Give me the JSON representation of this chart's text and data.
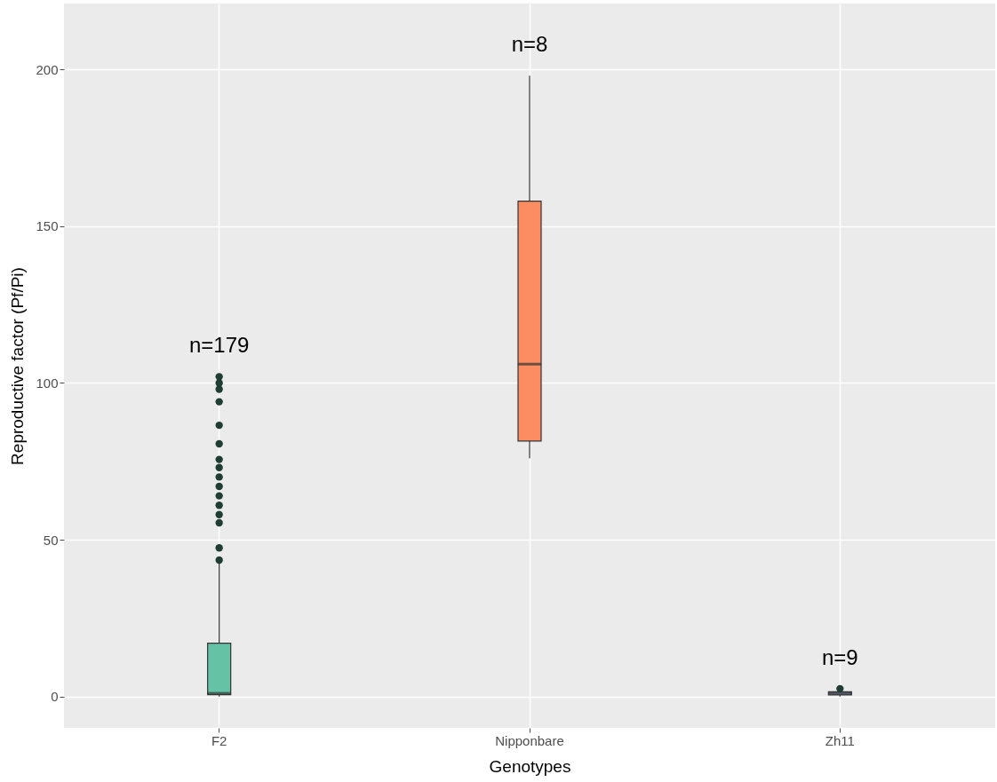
{
  "chart_data": {
    "type": "box",
    "xlabel": "Genotypes",
    "ylabel": "Reproductive factor (Pf/Pi)",
    "categories": [
      "F2",
      "Nipponbare",
      "Zh11"
    ],
    "colors": [
      "#66c2a5",
      "#fc8d62",
      "#8da0cb"
    ],
    "boxes": [
      {
        "low": 0,
        "q1": 0.6,
        "median": 1,
        "q3": 17,
        "high": 43,
        "outliers": [
          43.5,
          47.4,
          55.4,
          58,
          61,
          64,
          67,
          70,
          73,
          75.6,
          80.6,
          86.5,
          94,
          98,
          100,
          102
        ]
      },
      {
        "low": 76,
        "q1": 81.5,
        "median": 106,
        "q3": 158,
        "high": 198
      },
      {
        "low": 0,
        "q1": 0.5,
        "median": 1,
        "q3": 1.5,
        "high": 2,
        "outliers": [
          2.5
        ]
      }
    ],
    "ylim": [
      -10,
      221
    ],
    "yticks": [
      0,
      50,
      100,
      150,
      200
    ],
    "grid": true,
    "annotations": [
      "n=179",
      "n=8",
      "n=9"
    ]
  }
}
